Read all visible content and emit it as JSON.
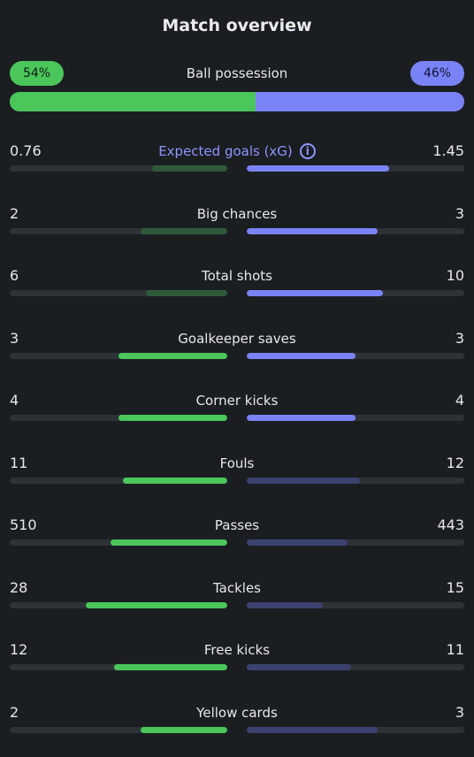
{
  "title": "Match overview",
  "possession": {
    "label": "Ball possession",
    "home_text": "54%",
    "away_text": "46%",
    "home_value": 54,
    "away_value": 46,
    "colors": {
      "home": "#4ac65a",
      "away": "#7a83f5"
    }
  },
  "stats": [
    {
      "label": "Expected goals (xG)",
      "home": "0.76",
      "away": "1.45",
      "home_frac": 0.344,
      "away_frac": 0.656,
      "home_style": "dgreen",
      "away_style": "blue",
      "accent": true,
      "info": true
    },
    {
      "label": "Big chances",
      "home": "2",
      "away": "3",
      "home_frac": 0.4,
      "away_frac": 0.6,
      "home_style": "dgreen",
      "away_style": "blue"
    },
    {
      "label": "Total shots",
      "home": "6",
      "away": "10",
      "home_frac": 0.375,
      "away_frac": 0.625,
      "home_style": "dgreen",
      "away_style": "blue"
    },
    {
      "label": "Goalkeeper saves",
      "home": "3",
      "away": "3",
      "home_frac": 0.5,
      "away_frac": 0.5,
      "home_style": "green",
      "away_style": "blue"
    },
    {
      "label": "Corner kicks",
      "home": "4",
      "away": "4",
      "home_frac": 0.5,
      "away_frac": 0.5,
      "home_style": "green",
      "away_style": "blue"
    },
    {
      "label": "Fouls",
      "home": "11",
      "away": "12",
      "home_frac": 0.478,
      "away_frac": 0.522,
      "home_style": "green",
      "away_style": "dblue"
    },
    {
      "label": "Passes",
      "home": "510",
      "away": "443",
      "home_frac": 0.535,
      "away_frac": 0.465,
      "home_style": "green",
      "away_style": "dblue"
    },
    {
      "label": "Tackles",
      "home": "28",
      "away": "15",
      "home_frac": 0.651,
      "away_frac": 0.349,
      "home_style": "green",
      "away_style": "dblue"
    },
    {
      "label": "Free kicks",
      "home": "12",
      "away": "11",
      "home_frac": 0.522,
      "away_frac": 0.478,
      "home_style": "green",
      "away_style": "dblue"
    },
    {
      "label": "Yellow cards",
      "home": "2",
      "away": "3",
      "home_frac": 0.4,
      "away_frac": 0.6,
      "home_style": "green",
      "away_style": "dblue"
    }
  ],
  "info_icon": "info-icon"
}
